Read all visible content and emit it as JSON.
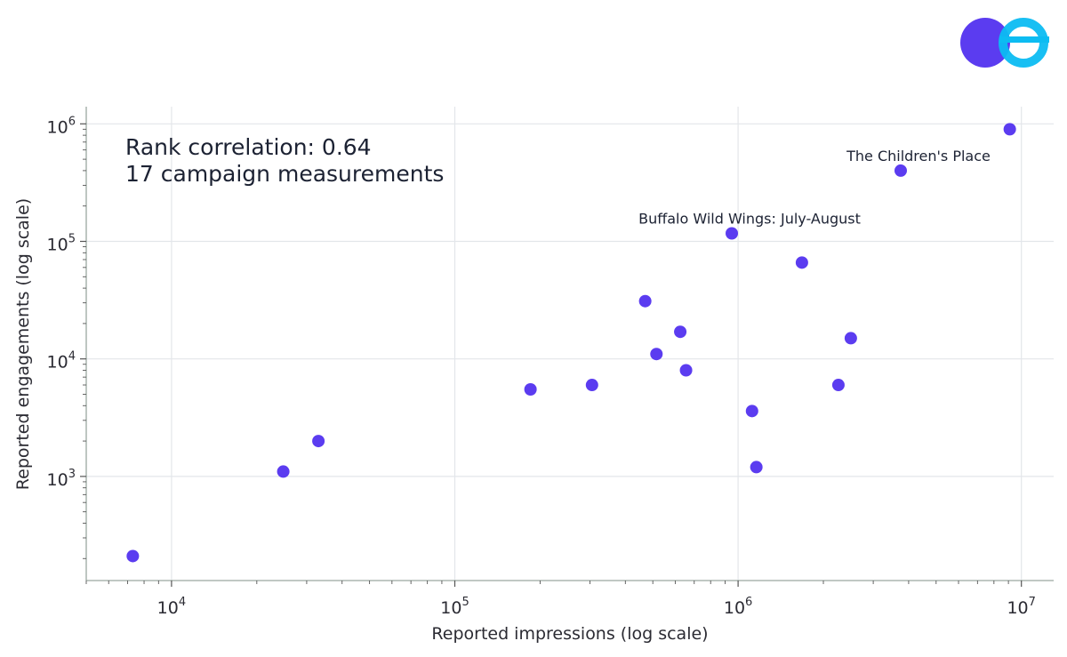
{
  "brand": {
    "logo": "logo-icon",
    "colors": {
      "left": "#5b3cf0",
      "right": "#0cbcf2"
    }
  },
  "chart_data": {
    "type": "scatter",
    "xscale": "log",
    "yscale": "log",
    "xlim": [
      5000,
      13000000
    ],
    "ylim": [
      130,
      1400000
    ],
    "grid": true,
    "xlabel": "Reported impressions (log scale)",
    "ylabel": "Reported engagements (log scale)",
    "x_ticks": [
      {
        "value": 10000,
        "base": "10",
        "exp": "4"
      },
      {
        "value": 100000,
        "base": "10",
        "exp": "5"
      },
      {
        "value": 1000000,
        "base": "10",
        "exp": "6"
      },
      {
        "value": 10000000,
        "base": "10",
        "exp": "7"
      }
    ],
    "y_ticks": [
      {
        "value": 1000,
        "base": "10",
        "exp": "3"
      },
      {
        "value": 10000,
        "base": "10",
        "exp": "4"
      },
      {
        "value": 100000,
        "base": "10",
        "exp": "5"
      },
      {
        "value": 1000000,
        "base": "10",
        "exp": "6"
      }
    ],
    "stats": {
      "correlation": "Rank correlation: 0.64",
      "count": "17 campaign measurements"
    },
    "point_color": "#5b3cf0",
    "points": [
      {
        "x": 7300,
        "y": 210
      },
      {
        "x": 24800,
        "y": 1100
      },
      {
        "x": 33000,
        "y": 2000
      },
      {
        "x": 185000,
        "y": 5500
      },
      {
        "x": 305000,
        "y": 6000
      },
      {
        "x": 470000,
        "y": 31000
      },
      {
        "x": 515000,
        "y": 11000
      },
      {
        "x": 625000,
        "y": 17000
      },
      {
        "x": 655000,
        "y": 8000
      },
      {
        "x": 950000,
        "y": 117000
      },
      {
        "x": 1120000,
        "y": 3600
      },
      {
        "x": 1160000,
        "y": 1200
      },
      {
        "x": 1680000,
        "y": 66000
      },
      {
        "x": 2260000,
        "y": 6000
      },
      {
        "x": 2500000,
        "y": 15000
      },
      {
        "x": 3750000,
        "y": 400000
      },
      {
        "x": 9100000,
        "y": 900000
      }
    ],
    "annotations": [
      {
        "text": "The Children's Place",
        "x": 3750000,
        "y": 400000
      },
      {
        "text": "Buffalo Wild Wings: July-August",
        "x": 950000,
        "y": 117000
      }
    ]
  }
}
